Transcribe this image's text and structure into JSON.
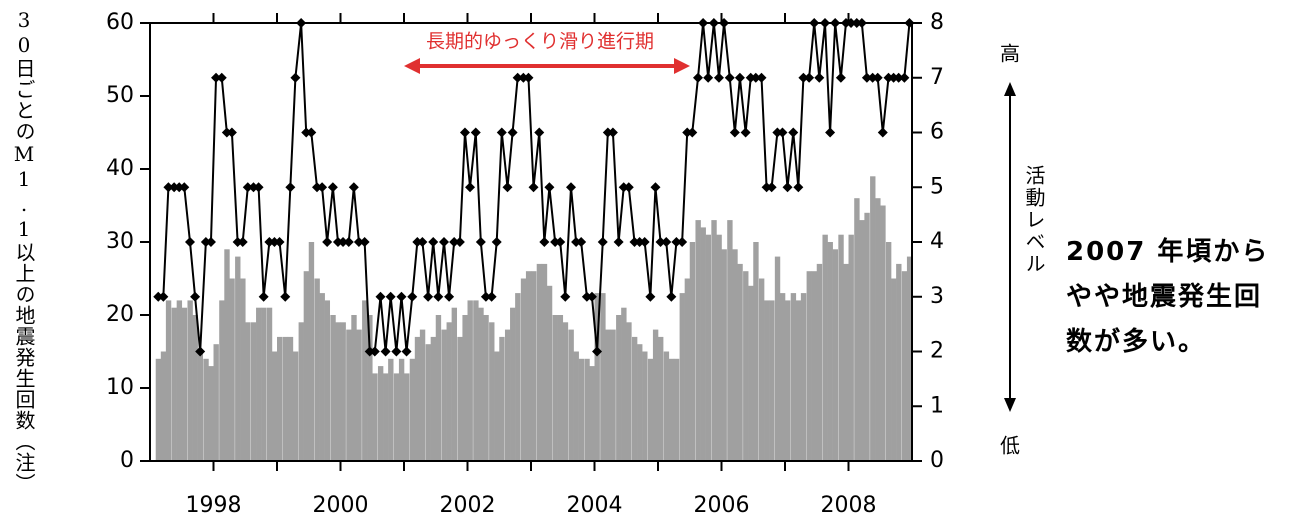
{
  "chart_data": {
    "type": "bar-line",
    "ylabel": "30日ごとのM1.1以上の地震発生回数（注）",
    "y2label": "活動レベル",
    "y2_high": "高",
    "y2_low": "低",
    "annotation": "長期的ゆっくり滑り進行期",
    "side_note": [
      "2007 年頃から",
      "やや地震発生回",
      "数が多い。"
    ],
    "xlim": [
      1997,
      2009
    ],
    "xticks": [
      1998,
      2000,
      2002,
      2004,
      2006,
      2008
    ],
    "xminor_ticks": [
      1999,
      2001,
      2003,
      2005,
      2007
    ],
    "ylim": [
      0,
      60
    ],
    "yticks": [
      0,
      10,
      20,
      30,
      40,
      50,
      60
    ],
    "y2lim": [
      0,
      8
    ],
    "y2ticks": [
      0,
      1,
      2,
      3,
      4,
      5,
      6,
      7,
      8
    ],
    "x": [
      1997.13,
      1997.21,
      1997.29,
      1997.38,
      1997.46,
      1997.54,
      1997.63,
      1997.71,
      1997.79,
      1997.88,
      1997.96,
      1998.04,
      1998.13,
      1998.21,
      1998.29,
      1998.38,
      1998.46,
      1998.54,
      1998.63,
      1998.71,
      1998.79,
      1998.88,
      1998.96,
      1999.04,
      1999.13,
      1999.21,
      1999.29,
      1999.38,
      1999.46,
      1999.54,
      1999.63,
      1999.71,
      1999.79,
      1999.88,
      1999.96,
      2000.04,
      2000.13,
      2000.21,
      2000.29,
      2000.38,
      2000.46,
      2000.54,
      2000.63,
      2000.71,
      2000.79,
      2000.88,
      2000.96,
      2001.04,
      2001.13,
      2001.21,
      2001.29,
      2001.38,
      2001.46,
      2001.54,
      2001.63,
      2001.71,
      2001.79,
      2001.88,
      2001.96,
      2002.04,
      2002.13,
      2002.21,
      2002.29,
      2002.38,
      2002.46,
      2002.54,
      2002.63,
      2002.71,
      2002.79,
      2002.88,
      2002.96,
      2003.04,
      2003.13,
      2003.21,
      2003.29,
      2003.38,
      2003.46,
      2003.54,
      2003.63,
      2003.71,
      2003.79,
      2003.88,
      2003.96,
      2004.04,
      2004.13,
      2004.21,
      2004.29,
      2004.38,
      2004.46,
      2004.54,
      2004.63,
      2004.71,
      2004.79,
      2004.88,
      2004.96,
      2005.04,
      2005.13,
      2005.21,
      2005.29,
      2005.38,
      2005.46,
      2005.54,
      2005.63,
      2005.71,
      2005.79,
      2005.88,
      2005.96,
      2006.04,
      2006.13,
      2006.21,
      2006.29,
      2006.38,
      2006.46,
      2006.54,
      2006.63,
      2006.71,
      2006.79,
      2006.88,
      2006.96,
      2007.04,
      2007.13,
      2007.21,
      2007.29,
      2007.38,
      2007.46,
      2007.54,
      2007.63,
      2007.71,
      2007.79,
      2007.88,
      2007.96,
      2008.04,
      2008.13,
      2008.21,
      2008.29,
      2008.38,
      2008.46,
      2008.54,
      2008.63,
      2008.71,
      2008.79,
      2008.88,
      2008.96
    ],
    "series": [
      {
        "type": "bar",
        "color": "#a0a0a0",
        "values": [
          14,
          15,
          22,
          21,
          22,
          21,
          22,
          20,
          15,
          14,
          13,
          16,
          22,
          29,
          25,
          28,
          25,
          19,
          19,
          21,
          21,
          21,
          15,
          17,
          17,
          17,
          15,
          19,
          26,
          30,
          25,
          23,
          22,
          20,
          19,
          19,
          18,
          20,
          18,
          22,
          20,
          12,
          13,
          12,
          14,
          12,
          14,
          12,
          14,
          17,
          18,
          16,
          17,
          20,
          18,
          19,
          21,
          17,
          20,
          22,
          22,
          21,
          20,
          19,
          15,
          17,
          18,
          21,
          23,
          25,
          26,
          26,
          27,
          27,
          24,
          20,
          20,
          19,
          18,
          15,
          14,
          14,
          13,
          23,
          23,
          18,
          18,
          20,
          21,
          19,
          17,
          16,
          15,
          14,
          18,
          17,
          15,
          14,
          14,
          23,
          25,
          30,
          33,
          32,
          31,
          33,
          31,
          29,
          33,
          29,
          27,
          26,
          24,
          30,
          25,
          22,
          22,
          28,
          23,
          22,
          23,
          22,
          23,
          26,
          26,
          27,
          31,
          30,
          29,
          31,
          27,
          31,
          36,
          33,
          34,
          39,
          36,
          35,
          30,
          25,
          27,
          26,
          28
        ]
      },
      {
        "type": "line",
        "axis": "y2",
        "color": "#000000",
        "values": [
          3,
          3,
          5,
          5,
          5,
          5,
          4,
          3,
          2,
          4,
          4,
          7,
          7,
          6,
          6,
          4,
          4,
          5,
          5,
          5,
          3,
          4,
          4,
          4,
          3,
          5,
          7,
          8,
          6,
          6,
          5,
          5,
          4,
          5,
          4,
          4,
          4,
          5,
          4,
          4,
          2,
          2,
          3,
          2,
          3,
          2,
          3,
          2,
          3,
          4,
          4,
          3,
          4,
          3,
          4,
          3,
          4,
          4,
          6,
          5,
          6,
          4,
          3,
          3,
          4,
          6,
          5,
          6,
          7,
          7,
          7,
          5,
          6,
          4,
          5,
          4,
          4,
          3,
          5,
          4,
          4,
          3,
          3,
          2,
          4,
          6,
          6,
          4,
          5,
          5,
          4,
          4,
          4,
          3,
          5,
          4,
          4,
          3,
          4,
          4,
          6,
          6,
          7,
          8,
          7,
          8,
          7,
          8,
          7,
          6,
          7,
          6,
          7,
          7,
          7,
          5,
          5,
          6,
          6,
          5,
          6,
          5,
          7,
          7,
          8,
          7,
          8,
          6,
          8,
          7,
          8,
          8,
          8,
          8,
          7,
          7,
          7,
          6,
          7,
          7,
          7,
          7,
          8
        ]
      }
    ]
  }
}
